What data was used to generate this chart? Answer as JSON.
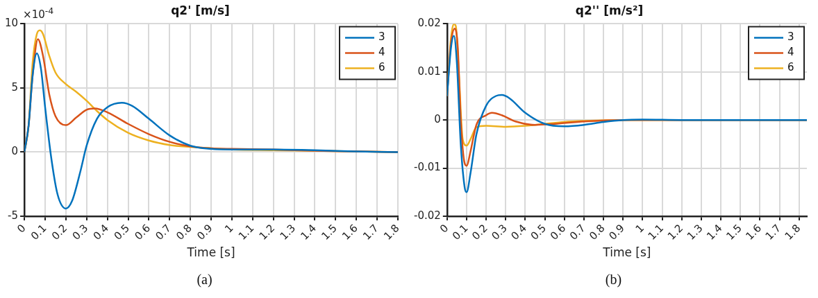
{
  "chart_data": [
    {
      "type": "line",
      "title": "q2' [m/s]",
      "subtitle": "(a)",
      "xlabel": "Time [s]",
      "annotations": [
        "×10$^{-4}$"
      ],
      "xlim": [
        0,
        1.8
      ],
      "xticks": [
        0,
        0.1,
        0.2,
        0.3,
        0.4,
        0.5,
        0.6,
        0.7,
        0.8,
        0.9,
        1,
        1.1,
        1.2,
        1.3,
        1.4,
        1.5,
        1.6,
        1.7,
        1.8
      ],
      "ylim": [
        -5,
        10
      ],
      "yticks": [
        -5,
        0,
        5,
        10
      ],
      "grid": true,
      "legend": "top right",
      "marker": "none",
      "line_style": "solid",
      "series": [
        {
          "name": "3",
          "color": "#0072bd",
          "x": [
            0,
            0.02,
            0.04,
            0.06,
            0.08,
            0.1,
            0.13,
            0.16,
            0.2,
            0.23,
            0.27,
            0.3,
            0.35,
            0.4,
            0.47,
            0.52,
            0.6,
            0.7,
            0.8,
            0.9,
            1.0,
            1.2,
            1.4,
            1.6,
            1.8
          ],
          "values": [
            0,
            2,
            6,
            7.7,
            6.5,
            3.5,
            -0.5,
            -3.3,
            -4.4,
            -3.8,
            -1.5,
            0.5,
            2.6,
            3.5,
            3.85,
            3.6,
            2.6,
            1.3,
            0.5,
            0.25,
            0.2,
            0.2,
            0.15,
            0.05,
            0
          ]
        },
        {
          "name": "4",
          "color": "#d95319",
          "x": [
            0,
            0.02,
            0.04,
            0.065,
            0.09,
            0.12,
            0.15,
            0.2,
            0.25,
            0.3,
            0.34,
            0.4,
            0.5,
            0.6,
            0.7,
            0.8,
            0.9,
            1.0,
            1.2,
            1.4,
            1.6,
            1.8
          ],
          "values": [
            0,
            2,
            6,
            8.8,
            7.5,
            4.5,
            2.8,
            2.1,
            2.7,
            3.3,
            3.4,
            3.1,
            2.2,
            1.4,
            0.8,
            0.45,
            0.3,
            0.25,
            0.2,
            0.1,
            0.05,
            0
          ]
        },
        {
          "name": "6",
          "color": "#edb120",
          "x": [
            0,
            0.02,
            0.04,
            0.06,
            0.075,
            0.09,
            0.12,
            0.15,
            0.2,
            0.25,
            0.3,
            0.35,
            0.4,
            0.5,
            0.6,
            0.7,
            0.8,
            0.9,
            1.0,
            1.2,
            1.4,
            1.6,
            1.8
          ],
          "values": [
            0,
            2,
            7,
            9.2,
            9.5,
            9.2,
            7.5,
            6.2,
            5.3,
            4.7,
            4,
            3.2,
            2.5,
            1.5,
            0.9,
            0.55,
            0.4,
            0.3,
            0.2,
            0.15,
            0.1,
            0.05,
            0
          ]
        }
      ]
    },
    {
      "type": "line",
      "title": "q2'' [m/s²]",
      "subtitle": "(b)",
      "xlabel": "Time [s]",
      "xlim": [
        0,
        1.84
      ],
      "xticks": [
        0,
        0.1,
        0.2,
        0.3,
        0.4,
        0.5,
        0.6,
        0.7,
        0.8,
        0.9,
        1,
        1.1,
        1.2,
        1.3,
        1.4,
        1.5,
        1.6,
        1.7,
        1.8
      ],
      "ylim": [
        -0.02,
        0.02
      ],
      "yticks": [
        -0.02,
        -0.01,
        0,
        0.01,
        0.02
      ],
      "grid": true,
      "legend": "top right",
      "marker": "none",
      "line_style": "solid",
      "series": [
        {
          "name": "3",
          "color": "#0072bd",
          "x": [
            0,
            0.02,
            0.035,
            0.05,
            0.07,
            0.09,
            0.1,
            0.12,
            0.15,
            0.2,
            0.25,
            0.28,
            0.32,
            0.4,
            0.5,
            0.6,
            0.7,
            0.8,
            0.9,
            1.0,
            1.2,
            1.84
          ],
          "values": [
            0.005,
            0.015,
            0.0175,
            0.012,
            -0.005,
            -0.014,
            -0.015,
            -0.011,
            -0.003,
            0.003,
            0.005,
            0.0052,
            0.0045,
            0.0015,
            -0.0008,
            -0.0013,
            -0.001,
            -0.0004,
            0,
            0.0001,
            0,
            0
          ]
        },
        {
          "name": "4",
          "color": "#d95319",
          "x": [
            0,
            0.02,
            0.04,
            0.055,
            0.07,
            0.09,
            0.1,
            0.12,
            0.15,
            0.2,
            0.23,
            0.28,
            0.35,
            0.45,
            0.55,
            0.7,
            0.9,
            1.84
          ],
          "values": [
            0.005,
            0.016,
            0.019,
            0.015,
            0,
            -0.009,
            -0.0095,
            -0.0065,
            -0.001,
            0.001,
            0.0015,
            0.001,
            -0.0003,
            -0.001,
            -0.0008,
            -0.0003,
            0,
            0
          ]
        },
        {
          "name": "6",
          "color": "#edb120",
          "x": [
            0,
            0.02,
            0.035,
            0.045,
            0.06,
            0.08,
            0.1,
            0.12,
            0.15,
            0.2,
            0.3,
            0.4,
            0.5,
            0.6,
            0.7,
            0.9,
            1.84
          ],
          "values": [
            0.005,
            0.017,
            0.02,
            0.0195,
            0.01,
            -0.004,
            -0.0053,
            -0.004,
            -0.0015,
            -0.0012,
            -0.0014,
            -0.0012,
            -0.0008,
            -0.0004,
            -0.0002,
            0,
            0
          ]
        }
      ]
    }
  ]
}
